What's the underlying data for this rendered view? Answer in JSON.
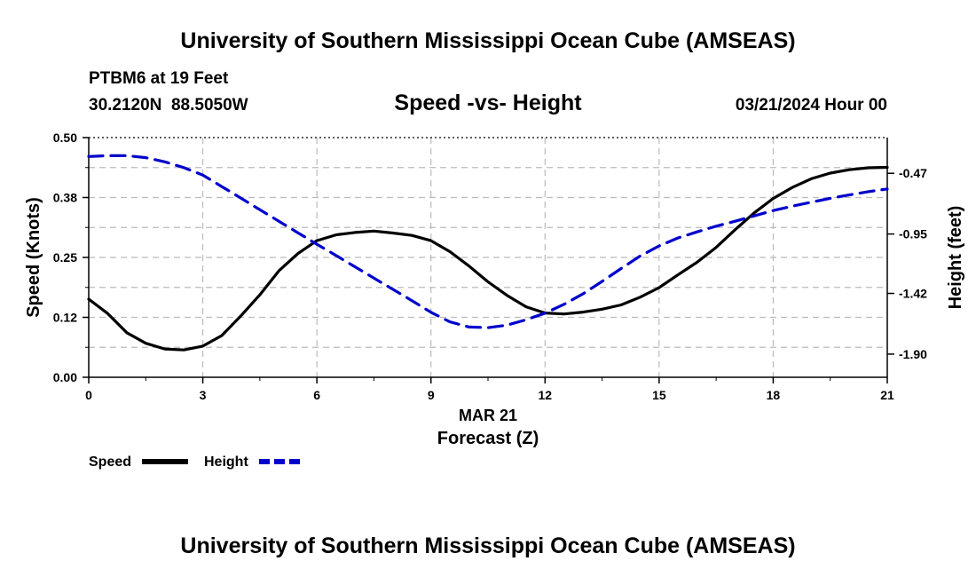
{
  "header": {
    "title": "University of Southern Mississippi Ocean Cube (AMSEAS)",
    "footer_title": "University of Southern Mississippi Ocean Cube (AMSEAS)",
    "station": "PTBM6 at 19 Feet",
    "coords": "30.2120N  88.5050W",
    "datetime": "03/21/2024 Hour 00"
  },
  "chart_data": {
    "type": "line",
    "title": "Speed -vs- Height",
    "xlabel_date": "MAR 21",
    "xlabel": "Forecast (Z)",
    "ylabel": "Speed (Knots)",
    "ylabel_right": "Height (feet)",
    "xlim": [
      0,
      21
    ],
    "ylim": [
      0.0,
      0.5
    ],
    "ylim_right": [
      -2.0833,
      -0.1875
    ],
    "grid": true,
    "x_ticks": [
      0,
      3,
      6,
      9,
      12,
      15,
      18,
      21
    ],
    "x_tick_labels": [
      "0",
      "3",
      "6",
      "9",
      "12",
      "15",
      "18",
      "21"
    ],
    "y_ticks": [
      0.0,
      0.125,
      0.25,
      0.375,
      0.5
    ],
    "y_tick_labels": [
      "0.00",
      "0.12",
      "0.25",
      "0.38",
      "0.50"
    ],
    "y_right_ticks": [
      -0.47,
      -0.95,
      -1.42,
      -1.9
    ],
    "y_right_tick_labels": [
      "-0.47",
      "-0.95",
      "-1.42",
      "-1.90"
    ],
    "legend_placement": "bottom-left",
    "series": [
      {
        "name": "Speed",
        "axis": "left",
        "color": "#000000",
        "style": "solid",
        "x": [
          0,
          0.5,
          1,
          1.5,
          2,
          2.5,
          3,
          3.5,
          4,
          4.5,
          5,
          5.5,
          6,
          6.5,
          7,
          7.5,
          8,
          8.5,
          9,
          9.5,
          10,
          10.5,
          11,
          11.5,
          12,
          12.5,
          13,
          13.5,
          14,
          14.5,
          15,
          15.5,
          16,
          16.5,
          17,
          17.5,
          18,
          18.5,
          19,
          19.5,
          20,
          20.5,
          21
        ],
        "values": [
          0.163,
          0.133,
          0.093,
          0.071,
          0.059,
          0.057,
          0.065,
          0.087,
          0.128,
          0.172,
          0.222,
          0.258,
          0.285,
          0.297,
          0.302,
          0.305,
          0.301,
          0.296,
          0.285,
          0.262,
          0.232,
          0.199,
          0.171,
          0.147,
          0.134,
          0.132,
          0.136,
          0.142,
          0.151,
          0.167,
          0.187,
          0.214,
          0.24,
          0.271,
          0.308,
          0.343,
          0.373,
          0.396,
          0.414,
          0.426,
          0.433,
          0.437,
          0.438
        ]
      },
      {
        "name": "Height",
        "axis": "right",
        "color": "#0000cc",
        "style": "dashed",
        "x": [
          0,
          0.5,
          1,
          1.5,
          2,
          2.5,
          3,
          3.5,
          4,
          4.5,
          5,
          5.5,
          6,
          6.5,
          7,
          7.5,
          8,
          8.5,
          9,
          9.5,
          10,
          10.5,
          11,
          11.5,
          12,
          12.5,
          13,
          13.5,
          14,
          14.5,
          15,
          15.5,
          16,
          16.5,
          17,
          17.5,
          18,
          18.5,
          19,
          19.5,
          20,
          20.5,
          21
        ],
        "values": [
          -0.337,
          -0.331,
          -0.33,
          -0.346,
          -0.379,
          -0.425,
          -0.484,
          -0.575,
          -0.666,
          -0.758,
          -0.849,
          -0.94,
          -1.031,
          -1.119,
          -1.209,
          -1.299,
          -1.388,
          -1.477,
          -1.569,
          -1.645,
          -1.686,
          -1.691,
          -1.671,
          -1.628,
          -1.576,
          -1.506,
          -1.423,
          -1.325,
          -1.223,
          -1.125,
          -1.044,
          -0.981,
          -0.933,
          -0.888,
          -0.849,
          -0.807,
          -0.765,
          -0.73,
          -0.699,
          -0.668,
          -0.641,
          -0.615,
          -0.594
        ]
      }
    ]
  }
}
